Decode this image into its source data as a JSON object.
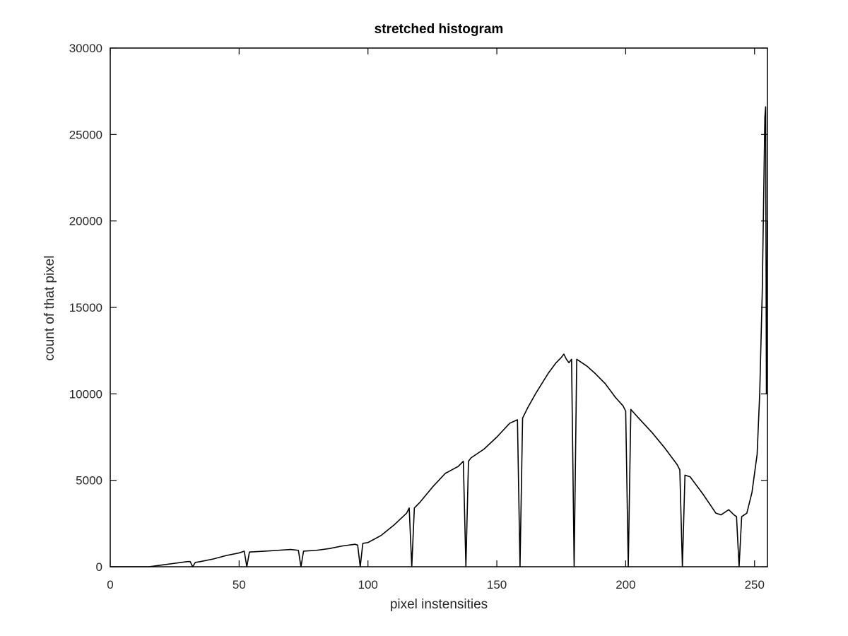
{
  "chart_data": {
    "type": "line",
    "title": "stretched histogram",
    "xlabel": "pixel instensities",
    "ylabel": "count of that pixel",
    "xlim": [
      0,
      255
    ],
    "ylim": [
      0,
      30000
    ],
    "xticks": [
      0,
      50,
      100,
      150,
      200,
      250
    ],
    "yticks": [
      0,
      5000,
      10000,
      15000,
      20000,
      25000,
      30000
    ],
    "xtick_labels": [
      "0",
      "50",
      "100",
      "150",
      "200",
      "250"
    ],
    "ytick_labels": [
      "0",
      "5000",
      "10000",
      "15000",
      "20000",
      "25000",
      "30000"
    ],
    "grid": false,
    "color": "#000000",
    "series": [
      {
        "x": [
          0,
          5,
          10,
          15,
          20,
          25,
          30,
          31,
          32,
          33,
          35,
          40,
          45,
          50,
          52,
          53,
          54,
          60,
          65,
          70,
          73,
          74,
          75,
          80,
          85,
          90,
          95,
          96,
          97,
          98,
          100,
          105,
          110,
          115,
          116,
          117,
          118,
          120,
          125,
          130,
          135,
          137,
          138,
          139,
          140,
          145,
          150,
          155,
          158,
          159,
          160,
          162,
          165,
          170,
          173,
          175,
          176,
          177,
          178,
          179,
          180,
          181,
          182,
          185,
          188,
          192,
          196,
          199,
          200,
          201,
          202,
          205,
          210,
          215,
          220,
          221,
          222,
          223,
          225,
          230,
          235,
          237,
          240,
          242,
          243,
          244,
          245,
          247,
          249,
          251,
          252,
          253,
          253.5,
          254,
          254.3,
          254.6,
          255
        ],
        "y": [
          0,
          0,
          0,
          0,
          100,
          200,
          300,
          300,
          0,
          250,
          300,
          450,
          650,
          800,
          900,
          0,
          850,
          900,
          950,
          1000,
          950,
          0,
          900,
          950,
          1050,
          1200,
          1300,
          1250,
          0,
          1350,
          1400,
          1800,
          2400,
          3100,
          3400,
          0,
          3400,
          3700,
          4600,
          5400,
          5800,
          6100,
          0,
          6100,
          6300,
          6800,
          7500,
          8300,
          8500,
          0,
          8600,
          9200,
          10000,
          11200,
          11800,
          12100,
          12300,
          12000,
          11800,
          12000,
          0,
          12000,
          11900,
          11600,
          11200,
          10600,
          9800,
          9300,
          9000,
          0,
          9100,
          8600,
          7800,
          6900,
          5900,
          5600,
          0,
          5300,
          5200,
          4200,
          3100,
          3000,
          3300,
          3000,
          2900,
          0,
          2900,
          3100,
          4300,
          6500,
          10000,
          16000,
          21000,
          26000,
          26600,
          10000,
          20000
        ]
      }
    ]
  }
}
